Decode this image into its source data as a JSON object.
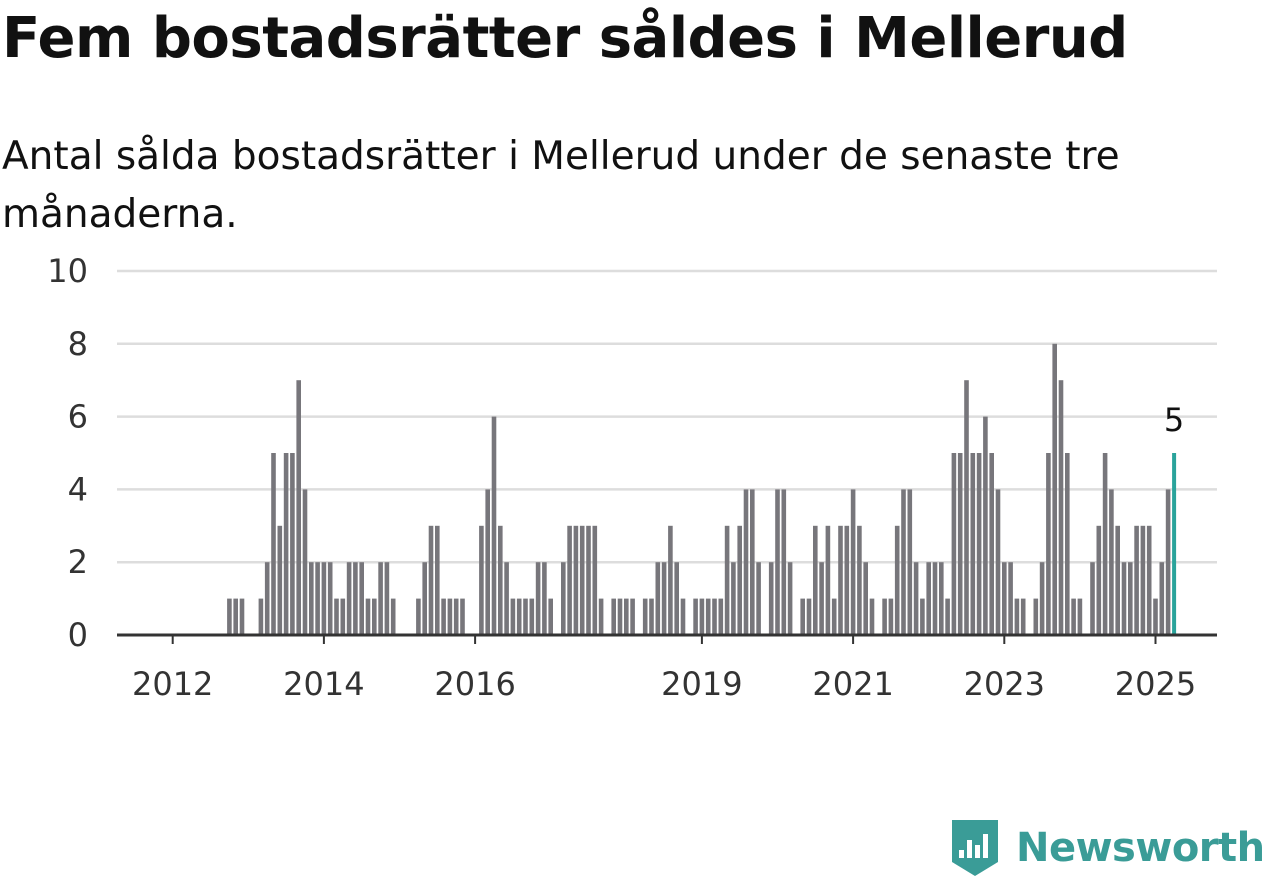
{
  "header": {
    "title": "Fem bostadsrätter såldes i Mellerud",
    "subtitle": "Antal sålda bostadsrätter i Mellerud under de senaste tre månaderna."
  },
  "chart_data": {
    "type": "bar",
    "title": "Fem bostadsrätter såldes i Mellerud",
    "subtitle": "Antal sålda bostadsrätter i Mellerud under de senaste tre månaderna.",
    "xlabel": "",
    "ylabel": "",
    "ylim": [
      0,
      10
    ],
    "y_ticks": [
      "0",
      "2",
      "4",
      "6",
      "8",
      "10"
    ],
    "x_tick_labels": [
      "2012",
      "2014",
      "2016",
      "2019",
      "2021",
      "2023",
      "2025"
    ],
    "x_tick_label_months": [
      "2012-01",
      "2014-01",
      "2016-01",
      "2019-01",
      "2021-01",
      "2023-01",
      "2025-01"
    ],
    "grid": true,
    "start_month": "2011-05",
    "values": [
      0,
      0,
      0,
      0,
      0,
      0,
      0,
      0,
      0,
      0,
      0,
      0,
      0,
      0,
      0,
      0,
      0,
      1,
      1,
      1,
      0,
      0,
      1,
      2,
      5,
      3,
      5,
      5,
      7,
      4,
      2,
      2,
      2,
      2,
      1,
      1,
      2,
      2,
      2,
      1,
      1,
      2,
      2,
      1,
      0,
      0,
      0,
      1,
      2,
      3,
      3,
      1,
      1,
      1,
      1,
      0,
      0,
      3,
      4,
      6,
      3,
      2,
      1,
      1,
      1,
      1,
      2,
      2,
      1,
      0,
      2,
      3,
      3,
      3,
      3,
      3,
      1,
      0,
      1,
      1,
      1,
      1,
      0,
      1,
      1,
      2,
      2,
      3,
      2,
      1,
      0,
      1,
      1,
      1,
      1,
      1,
      3,
      2,
      3,
      4,
      4,
      2,
      0,
      2,
      4,
      4,
      2,
      0,
      1,
      1,
      3,
      2,
      3,
      1,
      3,
      3,
      4,
      3,
      2,
      1,
      0,
      1,
      1,
      3,
      4,
      4,
      2,
      1,
      2,
      2,
      2,
      1,
      5,
      5,
      7,
      5,
      5,
      6,
      5,
      4,
      2,
      2,
      1,
      1,
      0,
      1,
      2,
      5,
      8,
      7,
      5,
      1,
      1,
      0,
      2,
      3,
      5,
      4,
      3,
      2,
      2,
      3,
      3,
      3,
      1,
      2,
      4,
      5
    ],
    "highlight_last": true,
    "last_value_label": "5",
    "colors": {
      "bar": "#77767b",
      "highlight": "#2aa39b",
      "grid": "#dddddd",
      "axis": "#333333"
    }
  },
  "footer": {
    "brand": "Newsworthy",
    "brand_color": "#3a9c97",
    "logo_icon": "newsworthy-logo-icon"
  }
}
